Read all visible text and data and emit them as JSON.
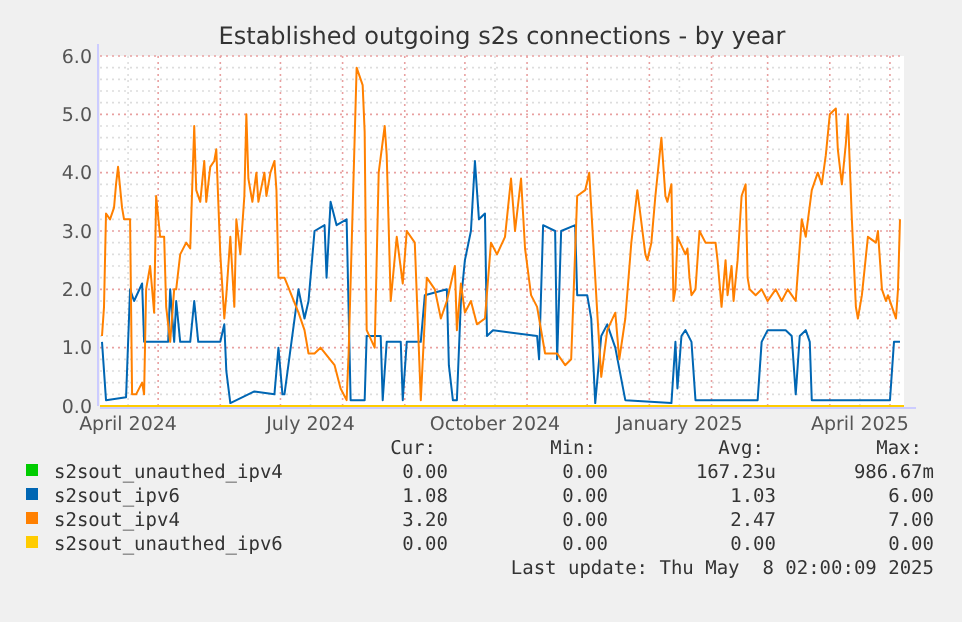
{
  "chart_data": {
    "type": "line",
    "title": "Established outgoing s2s connections - by year",
    "xlim": [
      "2024-04-02",
      "2025-05-08"
    ],
    "ylim": [
      0,
      6
    ],
    "xticks": [
      {
        "value": "2024-04-16",
        "label": "April 2024"
      },
      {
        "value": "2024-07-16",
        "label": "July 2024"
      },
      {
        "value": "2024-10-16",
        "label": "October 2024"
      },
      {
        "value": "2025-01-16",
        "label": "January 2025"
      },
      {
        "value": "2025-04-16",
        "label": "April 2025"
      },
      {
        "value": "2024-05-01",
        "label": null
      },
      {
        "value": "2024-06-01",
        "label": null
      },
      {
        "value": "2024-07-01",
        "label": null
      },
      {
        "value": "2024-08-01",
        "label": null
      },
      {
        "value": "2024-09-01",
        "label": null
      },
      {
        "value": "2024-10-01",
        "label": null
      },
      {
        "value": "2024-11-01",
        "label": null
      },
      {
        "value": "2024-12-01",
        "label": null
      },
      {
        "value": "2025-01-01",
        "label": null
      },
      {
        "value": "2025-02-01",
        "label": null
      },
      {
        "value": "2025-03-01",
        "label": null
      },
      {
        "value": "2025-04-01",
        "label": null
      },
      {
        "value": "2025-05-01",
        "label": null
      }
    ],
    "yticks": [
      {
        "value": 0,
        "label": "0.0"
      },
      {
        "value": 1,
        "label": "1.0"
      },
      {
        "value": 2,
        "label": "2.0"
      },
      {
        "value": 3,
        "label": "3.0"
      },
      {
        "value": 4,
        "label": "4.0"
      },
      {
        "value": 5,
        "label": "5.0"
      },
      {
        "value": 6,
        "label": "6.0"
      },
      {
        "value": 0.2,
        "label": null
      },
      {
        "value": 0.4,
        "label": null
      },
      {
        "value": 0.6,
        "label": null
      },
      {
        "value": 0.8,
        "label": null
      },
      {
        "value": 1.2,
        "label": null
      },
      {
        "value": 1.4,
        "label": null
      },
      {
        "value": 1.6,
        "label": null
      },
      {
        "value": 1.8,
        "label": null
      },
      {
        "value": 2.2,
        "label": null
      },
      {
        "value": 2.4,
        "label": null
      },
      {
        "value": 2.6,
        "label": null
      },
      {
        "value": 2.8,
        "label": null
      },
      {
        "value": 3.2,
        "label": null
      },
      {
        "value": 3.4,
        "label": null
      },
      {
        "value": 3.6,
        "label": null
      },
      {
        "value": 3.8,
        "label": null
      },
      {
        "value": 4.2,
        "label": null
      },
      {
        "value": 4.4,
        "label": null
      },
      {
        "value": 4.6,
        "label": null
      },
      {
        "value": 4.8,
        "label": null
      },
      {
        "value": 5.2,
        "label": null
      },
      {
        "value": 5.4,
        "label": null
      },
      {
        "value": 5.6,
        "label": null
      },
      {
        "value": 5.8,
        "label": null
      }
    ],
    "grid": true,
    "legend": "bottom",
    "marker": "none",
    "line_style": "solid",
    "annotations": [
      "Cur:",
      "Min:",
      "Avg:",
      "Max:",
      "0.00",
      "0.00",
      "167.23u",
      "986.67m",
      "1.08",
      "0.00",
      "1.03",
      "6.00",
      "3.20",
      "0.00",
      "2.47",
      "7.00",
      "0.00",
      "0.00",
      "0.00",
      "0.00",
      "Last update: Thu May  8 02:00:09 2025"
    ],
    "series": [
      {
        "name": "s2sout_unauthed_ipv4",
        "color": "#00cc00"
      },
      {
        "name": "s2sout_ipv6",
        "color": "#0066b3",
        "x": [
          "2024-04-03",
          "2024-04-05",
          "2024-04-15",
          "2024-04-17",
          "2024-04-19",
          "2024-04-23",
          "2024-04-24",
          "2024-05-06",
          "2024-05-07",
          "2024-05-09",
          "2024-05-10",
          "2024-05-12",
          "2024-05-17",
          "2024-05-19",
          "2024-05-21",
          "2024-06-01",
          "2024-06-03",
          "2024-06-04",
          "2024-06-06",
          "2024-06-18",
          "2024-06-28",
          "2024-06-30",
          "2024-07-02",
          "2024-07-03",
          "2024-07-10",
          "2024-07-13",
          "2024-07-15",
          "2024-07-18",
          "2024-07-23",
          "2024-07-24",
          "2024-07-26",
          "2024-07-29",
          "2024-08-03",
          "2024-08-05",
          "2024-08-12",
          "2024-08-13",
          "2024-08-20",
          "2024-08-21",
          "2024-08-23",
          "2024-08-30",
          "2024-08-31",
          "2024-09-02",
          "2024-09-09",
          "2024-09-11",
          "2024-09-22",
          "2024-09-23",
          "2024-09-25",
          "2024-09-27",
          "2024-09-29",
          "2024-10-01",
          "2024-10-04",
          "2024-10-06",
          "2024-10-08",
          "2024-10-11",
          "2024-10-12",
          "2024-10-15",
          "2024-11-06",
          "2024-11-07",
          "2024-11-09",
          "2024-11-15",
          "2024-11-16",
          "2024-11-18",
          "2024-11-25",
          "2024-11-26",
          "2024-12-01",
          "2024-12-03",
          "2024-12-05",
          "2024-12-08",
          "2024-12-11",
          "2024-12-15",
          "2024-12-20",
          "2025-01-12",
          "2025-01-14",
          "2025-01-15",
          "2025-01-17",
          "2025-01-19",
          "2025-01-22",
          "2025-01-24",
          "2025-02-24",
          "2025-02-26",
          "2025-03-01",
          "2025-03-10",
          "2025-03-13",
          "2025-03-15",
          "2025-03-17",
          "2025-03-20",
          "2025-03-22",
          "2025-03-23",
          "2025-05-01",
          "2025-05-03",
          "2025-05-06"
        ],
        "values": [
          1.1,
          0.1,
          0.15,
          2.0,
          1.8,
          2.1,
          1.1,
          1.1,
          2.0,
          1.1,
          1.8,
          1.1,
          1.1,
          1.8,
          1.1,
          1.1,
          1.4,
          0.6,
          0.05,
          0.25,
          0.2,
          1.0,
          0.2,
          0.2,
          2.0,
          1.5,
          1.8,
          3.0,
          3.1,
          2.2,
          3.5,
          3.1,
          3.2,
          0.1,
          0.1,
          1.2,
          1.2,
          0.1,
          1.1,
          1.1,
          0.1,
          1.1,
          1.1,
          1.9,
          2.0,
          0.7,
          0.1,
          0.1,
          1.8,
          2.5,
          3.0,
          4.2,
          3.2,
          3.3,
          1.2,
          1.3,
          1.2,
          0.8,
          3.1,
          3.0,
          0.8,
          3.0,
          3.1,
          1.9,
          1.9,
          1.5,
          0.05,
          1.2,
          1.4,
          1.0,
          0.1,
          0.05,
          1.1,
          0.3,
          1.2,
          1.3,
          1.1,
          0.1,
          0.1,
          1.1,
          1.3,
          1.3,
          1.2,
          0.2,
          1.2,
          1.3,
          1.1,
          0.1,
          0.1,
          1.1,
          1.1
        ]
      },
      {
        "name": "s2sout_ipv4",
        "color": "#ff8000",
        "x": [
          "2024-04-03",
          "2024-04-04",
          "2024-04-05",
          "2024-04-07",
          "2024-04-09",
          "2024-04-10",
          "2024-04-11",
          "2024-04-13",
          "2024-04-14",
          "2024-04-17",
          "2024-04-18",
          "2024-04-20",
          "2024-04-23",
          "2024-04-24",
          "2024-04-25",
          "2024-04-27",
          "2024-04-29",
          "2024-04-30",
          "2024-05-02",
          "2024-05-04",
          "2024-05-05",
          "2024-05-07",
          "2024-05-09",
          "2024-05-10",
          "2024-05-12",
          "2024-05-15",
          "2024-05-17",
          "2024-05-19",
          "2024-05-20",
          "2024-05-22",
          "2024-05-24",
          "2024-05-25",
          "2024-05-27",
          "2024-05-29",
          "2024-05-30",
          "2024-06-01",
          "2024-06-03",
          "2024-06-04",
          "2024-06-06",
          "2024-06-08",
          "2024-06-09",
          "2024-06-11",
          "2024-06-13",
          "2024-06-14",
          "2024-06-15",
          "2024-06-17",
          "2024-06-19",
          "2024-06-20",
          "2024-06-23",
          "2024-06-24",
          "2024-06-26",
          "2024-06-28",
          "2024-06-29",
          "2024-06-30",
          "2024-07-03",
          "2024-07-10",
          "2024-07-13",
          "2024-07-15",
          "2024-07-18",
          "2024-07-21",
          "2024-07-28",
          "2024-07-31",
          "2024-08-03",
          "2024-08-04",
          "2024-08-08",
          "2024-08-11",
          "2024-08-12",
          "2024-08-13",
          "2024-08-17",
          "2024-08-19",
          "2024-08-22",
          "2024-08-23",
          "2024-08-25",
          "2024-08-28",
          "2024-08-31",
          "2024-09-02",
          "2024-09-06",
          "2024-09-08",
          "2024-09-09",
          "2024-09-12",
          "2024-09-16",
          "2024-09-19",
          "2024-09-22",
          "2024-09-26",
          "2024-09-27",
          "2024-09-29",
          "2024-10-01",
          "2024-10-04",
          "2024-10-07",
          "2024-10-11",
          "2024-10-14",
          "2024-10-17",
          "2024-10-21",
          "2024-10-24",
          "2024-10-26",
          "2024-10-29",
          "2024-10-31",
          "2024-11-03",
          "2024-11-06",
          "2024-11-10",
          "2024-11-13",
          "2024-11-16",
          "2024-11-20",
          "2024-11-23",
          "2024-11-26",
          "2024-11-30",
          "2024-12-02",
          "2024-12-04",
          "2024-12-06",
          "2024-12-08",
          "2024-12-11",
          "2024-12-15",
          "2024-12-17",
          "2024-12-20",
          "2024-12-23",
          "2024-12-26",
          "2024-12-30",
          "2024-12-31",
          "2025-01-02",
          "2025-01-04",
          "2025-01-07",
          "2025-01-09",
          "2025-01-10",
          "2025-01-12",
          "2025-01-13",
          "2025-01-14",
          "2025-01-15",
          "2025-01-19",
          "2025-01-20",
          "2025-01-21",
          "2025-01-22",
          "2025-01-24",
          "2025-01-26",
          "2025-01-29",
          "2025-02-01",
          "2025-02-03",
          "2025-02-04",
          "2025-02-06",
          "2025-02-08",
          "2025-02-09",
          "2025-02-11",
          "2025-02-12",
          "2025-02-14",
          "2025-02-16",
          "2025-02-18",
          "2025-02-19",
          "2025-02-20",
          "2025-02-23",
          "2025-02-26",
          "2025-03-01",
          "2025-03-05",
          "2025-03-08",
          "2025-03-11",
          "2025-03-13",
          "2025-03-15",
          "2025-03-18",
          "2025-03-20",
          "2025-03-23",
          "2025-03-26",
          "2025-03-28",
          "2025-03-30",
          "2025-04-01",
          "2025-04-04",
          "2025-04-05",
          "2025-04-07",
          "2025-04-09",
          "2025-04-10",
          "2025-04-12",
          "2025-04-14",
          "2025-04-15",
          "2025-04-17",
          "2025-04-20",
          "2025-04-24",
          "2025-04-25",
          "2025-04-27",
          "2025-04-29",
          "2025-04-30",
          "2025-05-02",
          "2025-05-04",
          "2025-05-05",
          "2025-05-06"
        ],
        "values": [
          1.2,
          1.7,
          3.3,
          3.2,
          3.4,
          3.8,
          4.1,
          3.4,
          3.2,
          3.2,
          0.2,
          0.2,
          0.4,
          0.2,
          2.0,
          2.4,
          1.6,
          3.6,
          2.9,
          2.9,
          1.7,
          1.1,
          2.0,
          2.0,
          2.6,
          2.8,
          2.7,
          4.8,
          3.7,
          3.5,
          4.2,
          3.5,
          4.1,
          4.2,
          4.4,
          2.6,
          1.5,
          1.9,
          2.9,
          1.7,
          3.2,
          2.6,
          3.6,
          5.0,
          3.9,
          3.5,
          4.0,
          3.5,
          4.0,
          3.6,
          4.0,
          4.2,
          3.7,
          2.2,
          2.2,
          1.6,
          1.3,
          0.9,
          0.9,
          1.0,
          0.7,
          0.3,
          0.1,
          0.9,
          5.8,
          5.5,
          4.7,
          1.3,
          1.0,
          4.0,
          4.8,
          4.3,
          1.8,
          2.9,
          2.1,
          3.0,
          2.8,
          1.0,
          0.1,
          2.2,
          2.0,
          1.5,
          1.8,
          2.4,
          1.3,
          2.1,
          1.6,
          1.8,
          1.4,
          1.5,
          2.8,
          2.6,
          2.9,
          3.9,
          3.0,
          3.9,
          2.7,
          1.9,
          1.7,
          0.9,
          0.9,
          0.9,
          0.7,
          0.8,
          3.6,
          3.7,
          4.0,
          2.8,
          1.6,
          0.5,
          1.3,
          1.6,
          0.8,
          1.5,
          2.8,
          3.7,
          2.6,
          2.5,
          2.8,
          3.6,
          4.6,
          3.6,
          3.5,
          3.8,
          1.8,
          2.0,
          2.9,
          2.6,
          2.7,
          2.2,
          1.9,
          2.0,
          3.0,
          2.8,
          2.8,
          2.8,
          2.5,
          1.7,
          2.5,
          1.9,
          2.4,
          1.8,
          2.5,
          3.6,
          3.8,
          2.2,
          2.0,
          1.9,
          2.0,
          1.8,
          2.0,
          1.8,
          2.0,
          1.9,
          1.8,
          3.2,
          2.9,
          3.7,
          4.0,
          3.8,
          4.3,
          5.0,
          5.1,
          4.4,
          3.8,
          4.5,
          5.0,
          3.2,
          1.7,
          1.5,
          1.9,
          2.9,
          2.8,
          3.0,
          2.0,
          1.8,
          1.9,
          1.7,
          1.5,
          2.0,
          3.2
        ]
      },
      {
        "name": "s2sout_unauthed_ipv6",
        "color": "#ffcc00",
        "x": [
          "2024-04-02",
          "2025-05-08"
        ],
        "values": [
          0,
          0
        ]
      }
    ]
  }
}
